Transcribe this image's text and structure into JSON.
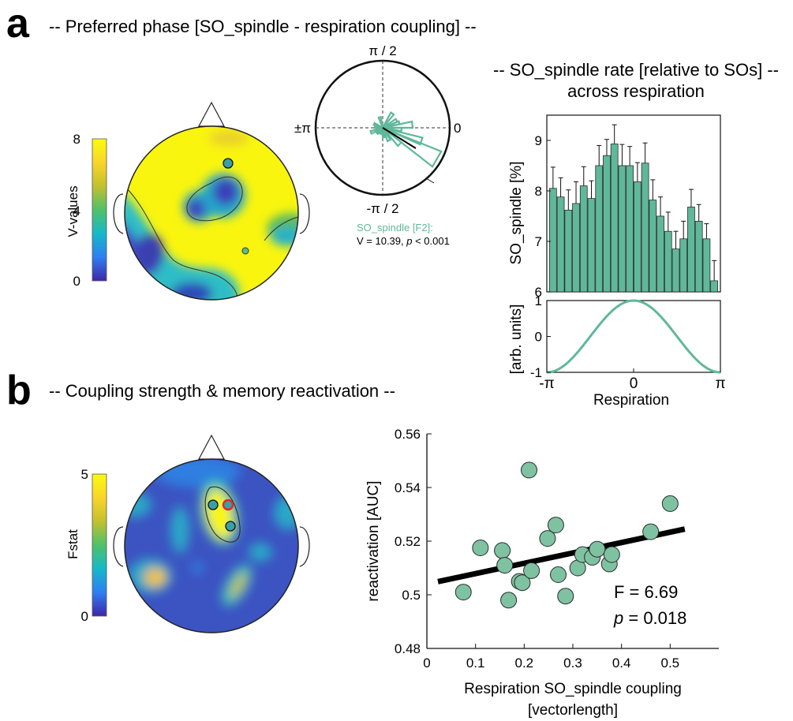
{
  "panel_a": {
    "letter": "a",
    "title": "-- Preferred phase [SO_spindle - respiration coupling] --",
    "topo": {
      "colorbar_label": "V-values",
      "colorbar_ticks": [
        "8",
        "4",
        "0"
      ],
      "colormap": [
        "#3e26a8",
        "#2f7ef2",
        "#16b9c9",
        "#4fc16a",
        "#c3c02f",
        "#f9d52a",
        "#f9fb0e"
      ],
      "electrode_color": "#3aa0a8"
    },
    "polar": {
      "label_top": "π / 2",
      "label_bottom": "-π / 2",
      "label_left": "±π",
      "label_right": "0",
      "series_label": "SO_spindle [F2]:",
      "stat_prefix": "V = 10.39, ",
      "stat_p": "p",
      "stat_suffix": " < 0.001",
      "color": "#5fb89a",
      "mean_color": "#000000"
    }
  },
  "panel_b": {
    "letter": "b",
    "title": "-- Coupling strength & memory reactivation --",
    "topo": {
      "colorbar_label": "Fstat",
      "colorbar_ticks": [
        "5",
        "0"
      ],
      "highlight_color": "#e8262a"
    }
  },
  "chart_data": [
    {
      "type": "bar",
      "title": "-- SO_spindle rate [relative to SOs] --",
      "subtitle": "across respiration",
      "ylabel": "SO_spindle [%]",
      "ylim": [
        6,
        9.5
      ],
      "yticks": [
        "9",
        "8",
        "7",
        "6"
      ],
      "bar_color": "#5fb89a",
      "values": [
        8.05,
        7.88,
        7.62,
        7.75,
        8.1,
        7.85,
        8.5,
        8.7,
        8.93,
        8.5,
        8.5,
        8.18,
        8.55,
        7.82,
        7.5,
        7.2,
        6.85,
        7.05,
        7.68,
        7.4,
        7.05,
        6.22
      ],
      "errors": [
        0.42,
        0.38,
        0.4,
        0.43,
        0.38,
        0.35,
        0.4,
        0.32,
        0.38,
        0.42,
        0.38,
        0.38,
        0.4,
        0.4,
        0.38,
        0.38,
        0.35,
        0.35,
        0.35,
        0.33,
        0.3,
        0.4
      ]
    },
    {
      "type": "line",
      "ylabel": "[arb. units]",
      "xlabel": "Respiration",
      "xticks": [
        "-π",
        "0",
        "π"
      ],
      "yticks": [
        "1",
        "0",
        "-1"
      ],
      "ylim": [
        -1,
        1
      ],
      "function": "cos",
      "color": "#5fb89a"
    },
    {
      "type": "scatter",
      "xlabel_line1": "Respiration SO_spindle coupling",
      "xlabel_line2": "[vectorlength]",
      "ylabel": "reactivation [AUC]",
      "xlim": [
        0,
        0.6
      ],
      "ylim": [
        0.48,
        0.56
      ],
      "xticks": [
        0,
        0.1,
        0.2,
        0.3,
        0.4,
        0.5
      ],
      "xtick_labels": [
        "0",
        "0.1",
        "0.2",
        "0.3",
        "0.4",
        "0.5"
      ],
      "yticks": [
        0.48,
        0.5,
        0.52,
        0.54,
        0.56
      ],
      "ytick_labels": [
        "0.48",
        "0.5",
        "0.52",
        "0.54",
        "0.56"
      ],
      "point_color": "#7fc2a2",
      "points": [
        [
          0.075,
          0.501
        ],
        [
          0.11,
          0.5175
        ],
        [
          0.155,
          0.5165
        ],
        [
          0.16,
          0.511
        ],
        [
          0.168,
          0.498
        ],
        [
          0.19,
          0.505
        ],
        [
          0.196,
          0.5045
        ],
        [
          0.21,
          0.5465
        ],
        [
          0.215,
          0.509
        ],
        [
          0.248,
          0.521
        ],
        [
          0.265,
          0.526
        ],
        [
          0.27,
          0.5075
        ],
        [
          0.285,
          0.4995
        ],
        [
          0.31,
          0.51
        ],
        [
          0.32,
          0.515
        ],
        [
          0.34,
          0.514
        ],
        [
          0.35,
          0.517
        ],
        [
          0.375,
          0.5115
        ],
        [
          0.38,
          0.515
        ],
        [
          0.46,
          0.5235
        ],
        [
          0.5,
          0.534
        ]
      ],
      "fit": [
        [
          0.0,
          0.5045
        ],
        [
          0.53,
          0.5245
        ]
      ],
      "stat_line1": "F = 6.69",
      "stat_p": "p",
      "stat_line2_suffix": " = 0.018"
    }
  ]
}
